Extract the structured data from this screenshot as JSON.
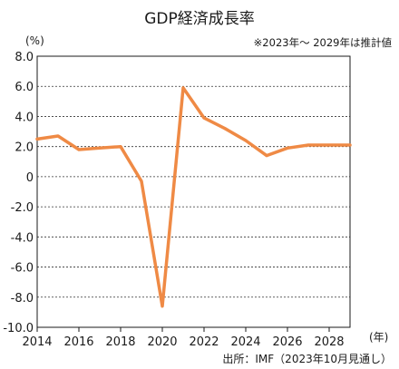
{
  "chart_data": {
    "type": "line",
    "title": "GDP経済成長率",
    "note": "※2023年～ 2029年は推計値",
    "ylabel": "(%)",
    "xlabel": "(年)",
    "source": "出所：IMF（2023年10月見通し）",
    "ylim": [
      -10.0,
      8.0
    ],
    "yticks": [
      8.0,
      6.0,
      4.0,
      2.0,
      0,
      -2.0,
      -4.0,
      -6.0,
      -8.0,
      -10.0
    ],
    "ytick_labels": [
      "8.0",
      "6.0",
      "4.0",
      "2.0",
      "0",
      "-2.0",
      "-4.0",
      "-6.0",
      "-8.0",
      "-10.0"
    ],
    "xlim": [
      2014,
      2029
    ],
    "xticks": [
      2014,
      2016,
      2018,
      2020,
      2022,
      2024,
      2026,
      2028
    ],
    "xtick_labels": [
      "2014",
      "2016",
      "2018",
      "2020",
      "2022",
      "2024",
      "2026",
      "2028"
    ],
    "grid": true,
    "line_color": "#ef8a45",
    "series": [
      {
        "x": [
          2014,
          2015,
          2016,
          2017,
          2018,
          2019,
          2020,
          2021,
          2022,
          2023,
          2024,
          2025,
          2026,
          2027,
          2028,
          2029
        ],
        "values": [
          2.5,
          2.7,
          1.8,
          1.9,
          2.0,
          -0.3,
          -8.6,
          5.9,
          3.9,
          3.2,
          2.4,
          1.4,
          1.9,
          2.1,
          2.1,
          2.1
        ]
      }
    ]
  }
}
